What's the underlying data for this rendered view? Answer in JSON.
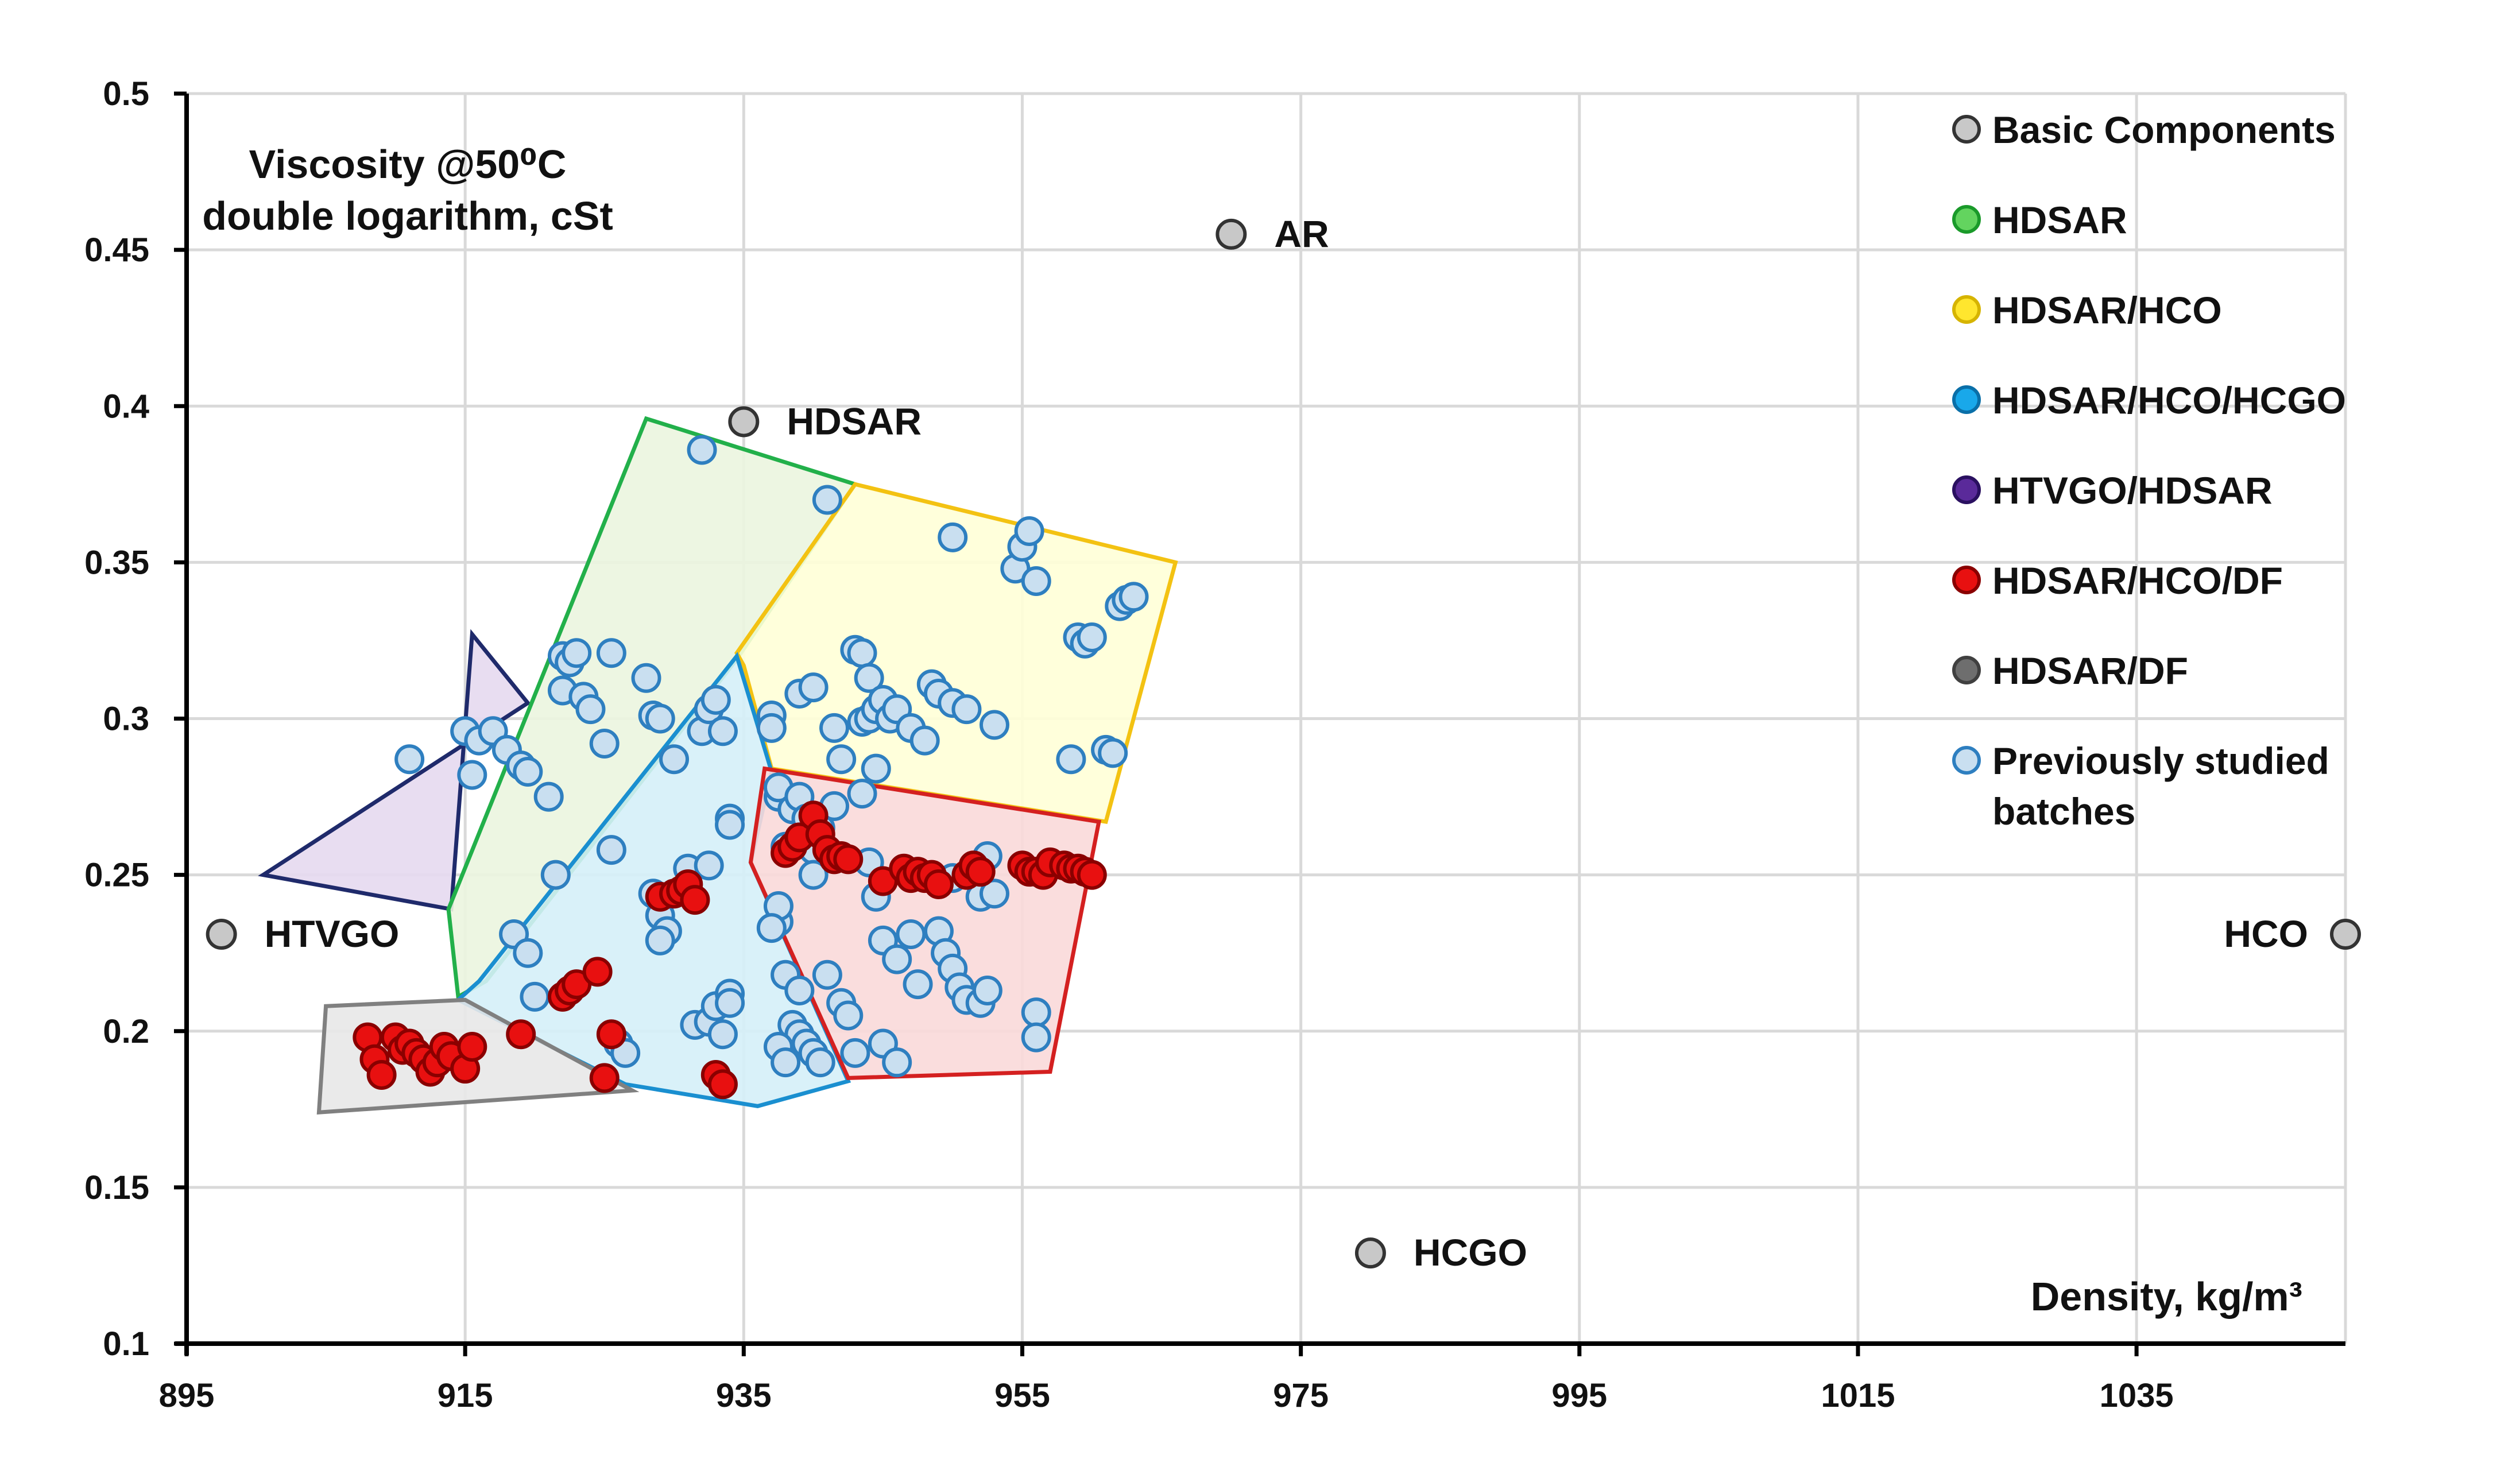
{
  "chart_data": {
    "type": "scatter",
    "title": "",
    "ylabel_lines": [
      "Viscosity @50⁰C",
      "double logarithm, cSt"
    ],
    "xlabel": "Density, kg/m³",
    "xlim": [
      895,
      1050
    ],
    "ylim": [
      0.1,
      0.5
    ],
    "x_ticks": [
      895,
      915,
      935,
      955,
      975,
      995,
      1015,
      1035
    ],
    "y_ticks": [
      0.1,
      0.15,
      0.2,
      0.25,
      0.3,
      0.35,
      0.4,
      0.45,
      0.5
    ],
    "x_tick_labels": [
      "895",
      "915",
      "935",
      "955",
      "975",
      "995",
      "1015",
      "1035"
    ],
    "y_tick_labels": [
      "0.1",
      "0.15",
      "0.2",
      "0.25",
      "0.3",
      "0.35",
      "0.4",
      "0.45",
      "0.5"
    ],
    "grid": true,
    "legend_position": "top-right",
    "legend": [
      {
        "label": "Basic Components",
        "color": "#c8c8c8",
        "edge": "#333333"
      },
      {
        "label": "HDSAR",
        "color": "#63d45f",
        "edge": "#1a9a2a"
      },
      {
        "label": "HDSAR/HCO",
        "color": "#ffe62e",
        "edge": "#d6b400"
      },
      {
        "label": "HDSAR/HCO/HCGO",
        "color": "#19a8ea",
        "edge": "#0a6fa8"
      },
      {
        "label": "HTVGO/HDSAR",
        "color": "#5a2a9a",
        "edge": "#2a1060"
      },
      {
        "label": "HDSAR/HCO/DF",
        "color": "#e81010",
        "edge": "#8a0000"
      },
      {
        "label": "HDSAR/DF",
        "color": "#6e6e6e",
        "edge": "#404040"
      },
      {
        "label": "Previously studied\nbatches",
        "color": "#c9dff0",
        "edge": "#2e7fc0"
      }
    ],
    "regions": [
      {
        "name": "HTVGO/HDSAR",
        "fill": "#e6d9ef",
        "stroke": "#1f2a6b",
        "points": [
          [
            900.5,
            0.25
          ],
          [
            914.0,
            0.239
          ],
          [
            915.5,
            0.327
          ],
          [
            919.5,
            0.305
          ]
        ]
      },
      {
        "name": "HDSAR",
        "fill": "#ebf5df",
        "stroke": "#22b04a",
        "points": [
          [
            913.8,
            0.239
          ],
          [
            928.0,
            0.396
          ],
          [
            943.0,
            0.375
          ],
          [
            934.5,
            0.319
          ],
          [
            916.5,
            0.216
          ],
          [
            914.5,
            0.211
          ]
        ]
      },
      {
        "name": "HDSAR/HCO",
        "fill": "#ffffd7",
        "stroke": "#f3c212",
        "points": [
          [
            934.5,
            0.321
          ],
          [
            943.0,
            0.375
          ],
          [
            966.0,
            0.35
          ],
          [
            961.0,
            0.267
          ],
          [
            937.0,
            0.284
          ],
          [
            935.0,
            0.317
          ]
        ]
      },
      {
        "name": "HDSAR/HCO/HCGO",
        "fill": "#d5eff8",
        "stroke": "#1a8fd0",
        "points": [
          [
            916.0,
            0.216
          ],
          [
            934.5,
            0.32
          ],
          [
            937.0,
            0.283
          ],
          [
            935.5,
            0.254
          ],
          [
            942.5,
            0.184
          ],
          [
            936.0,
            0.176
          ],
          [
            926.5,
            0.183
          ],
          [
            914.5,
            0.21
          ]
        ]
      },
      {
        "name": "HDSAR/HCO/DF",
        "fill": "#fad9d9",
        "stroke": "#d42020",
        "points": [
          [
            936.5,
            0.284
          ],
          [
            960.5,
            0.267
          ],
          [
            957.0,
            0.187
          ],
          [
            942.5,
            0.185
          ],
          [
            935.5,
            0.254
          ]
        ]
      },
      {
        "name": "HDSAR/DF",
        "fill": "#e8e8e8",
        "stroke": "#808080",
        "points": [
          [
            905.0,
            0.208
          ],
          [
            915.0,
            0.21
          ],
          [
            927.0,
            0.181
          ],
          [
            904.5,
            0.174
          ]
        ]
      }
    ],
    "series": [
      {
        "name": "Basic Components",
        "color": "#c8c8c8",
        "edge": "#333333",
        "points": [
          [
            935.0,
            0.395
          ],
          [
            970.0,
            0.455
          ],
          [
            980.0,
            0.129
          ],
          [
            897.5,
            0.231
          ],
          [
            1050.0,
            0.231
          ]
        ]
      },
      {
        "name": "Previously studied batches",
        "color": "#c9dff0",
        "edge": "#2e7fc0",
        "points": [
          [
            911,
            0.287
          ],
          [
            915,
            0.296
          ],
          [
            915.5,
            0.282
          ],
          [
            916,
            0.293
          ],
          [
            917,
            0.296
          ],
          [
            918,
            0.29
          ],
          [
            919,
            0.285
          ],
          [
            919.5,
            0.283
          ],
          [
            921,
            0.275
          ],
          [
            922,
            0.32
          ],
          [
            922.5,
            0.318
          ],
          [
            923,
            0.321
          ],
          [
            922,
            0.309
          ],
          [
            923.5,
            0.307
          ],
          [
            924,
            0.303
          ],
          [
            925,
            0.292
          ],
          [
            925.5,
            0.321
          ],
          [
            928,
            0.313
          ],
          [
            928.5,
            0.301
          ],
          [
            929,
            0.3
          ],
          [
            921.5,
            0.25
          ],
          [
            918.5,
            0.231
          ],
          [
            919.5,
            0.225
          ],
          [
            920,
            0.211
          ],
          [
            925.5,
            0.258
          ],
          [
            928.5,
            0.244
          ],
          [
            929,
            0.237
          ],
          [
            929.5,
            0.232
          ],
          [
            929,
            0.229
          ],
          [
            930,
            0.287
          ],
          [
            931,
            0.252
          ],
          [
            932,
            0.296
          ],
          [
            932.5,
            0.303
          ],
          [
            933,
            0.306
          ],
          [
            933.5,
            0.296
          ],
          [
            934,
            0.268
          ],
          [
            934,
            0.266
          ],
          [
            932.5,
            0.253
          ],
          [
            926,
            0.196
          ],
          [
            926.5,
            0.193
          ],
          [
            931.5,
            0.202
          ],
          [
            932.5,
            0.203
          ],
          [
            933,
            0.208
          ],
          [
            934,
            0.212
          ],
          [
            934,
            0.209
          ],
          [
            933.5,
            0.199
          ],
          [
            937,
            0.301
          ],
          [
            937.5,
            0.275
          ],
          [
            938,
            0.259
          ],
          [
            939,
            0.308
          ],
          [
            940,
            0.31
          ],
          [
            941.5,
            0.297
          ],
          [
            942,
            0.287
          ],
          [
            943,
            0.322
          ],
          [
            943.5,
            0.321
          ],
          [
            944,
            0.313
          ],
          [
            943.5,
            0.299
          ],
          [
            944,
            0.3
          ],
          [
            944.5,
            0.303
          ],
          [
            945,
            0.306
          ],
          [
            945.5,
            0.3
          ],
          [
            944.5,
            0.284
          ],
          [
            946,
            0.303
          ],
          [
            947,
            0.297
          ],
          [
            948,
            0.293
          ],
          [
            948.5,
            0.311
          ],
          [
            949,
            0.308
          ],
          [
            950,
            0.305
          ],
          [
            951,
            0.303
          ],
          [
            953,
            0.298
          ],
          [
            950,
            0.358
          ],
          [
            954.5,
            0.348
          ],
          [
            955,
            0.355
          ],
          [
            955.5,
            0.36
          ],
          [
            956,
            0.344
          ],
          [
            958.5,
            0.287
          ],
          [
            959,
            0.326
          ],
          [
            959.5,
            0.324
          ],
          [
            960,
            0.326
          ],
          [
            961,
            0.29
          ],
          [
            961.5,
            0.289
          ],
          [
            962,
            0.336
          ],
          [
            962.5,
            0.338
          ],
          [
            963,
            0.339
          ],
          [
            941,
            0.37
          ],
          [
            932,
            0.386
          ],
          [
            937,
            0.297
          ],
          [
            937.5,
            0.278
          ],
          [
            938.5,
            0.271
          ],
          [
            939,
            0.275
          ],
          [
            939.5,
            0.268
          ],
          [
            940,
            0.263
          ],
          [
            940,
            0.258
          ],
          [
            937.5,
            0.235
          ],
          [
            937.5,
            0.24
          ],
          [
            937,
            0.233
          ],
          [
            938,
            0.218
          ],
          [
            939,
            0.213
          ],
          [
            938.5,
            0.202
          ],
          [
            939,
            0.199
          ],
          [
            939.5,
            0.196
          ],
          [
            940,
            0.193
          ],
          [
            940.5,
            0.19
          ],
          [
            937.5,
            0.195
          ],
          [
            938,
            0.19
          ],
          [
            941,
            0.218
          ],
          [
            942,
            0.209
          ],
          [
            942.5,
            0.205
          ],
          [
            943,
            0.193
          ],
          [
            944.5,
            0.243
          ],
          [
            945,
            0.229
          ],
          [
            946,
            0.223
          ],
          [
            947,
            0.231
          ],
          [
            947.5,
            0.215
          ],
          [
            945,
            0.196
          ],
          [
            946,
            0.19
          ],
          [
            949,
            0.232
          ],
          [
            949.5,
            0.225
          ],
          [
            950,
            0.22
          ],
          [
            950.5,
            0.214
          ],
          [
            951,
            0.21
          ],
          [
            952,
            0.209
          ],
          [
            952.5,
            0.213
          ],
          [
            952,
            0.243
          ],
          [
            953,
            0.244
          ],
          [
            952.5,
            0.256
          ],
          [
            950,
            0.249
          ],
          [
            956,
            0.206
          ],
          [
            956,
            0.198
          ],
          [
            940,
            0.25
          ],
          [
            940.5,
            0.265
          ],
          [
            941.5,
            0.272
          ],
          [
            943.5,
            0.276
          ],
          [
            944,
            0.254
          ]
        ]
      },
      {
        "name": "HDSAR/HCO/DF",
        "color": "#e81010",
        "edge": "#8a0000",
        "points": [
          [
            908,
            0.198
          ],
          [
            908.5,
            0.191
          ],
          [
            909,
            0.186
          ],
          [
            910,
            0.198
          ],
          [
            910.5,
            0.194
          ],
          [
            911,
            0.196
          ],
          [
            911.5,
            0.193
          ],
          [
            912,
            0.191
          ],
          [
            912.5,
            0.187
          ],
          [
            913,
            0.19
          ],
          [
            913.5,
            0.195
          ],
          [
            914,
            0.192
          ],
          [
            915,
            0.188
          ],
          [
            915.5,
            0.195
          ],
          [
            919,
            0.199
          ],
          [
            922,
            0.211
          ],
          [
            922.5,
            0.213
          ],
          [
            923,
            0.215
          ],
          [
            924.5,
            0.219
          ],
          [
            925,
            0.185
          ],
          [
            925.5,
            0.199
          ],
          [
            929,
            0.243
          ],
          [
            930,
            0.244
          ],
          [
            930.5,
            0.245
          ],
          [
            931,
            0.247
          ],
          [
            931.5,
            0.242
          ],
          [
            933,
            0.186
          ],
          [
            933.5,
            0.183
          ],
          [
            938,
            0.257
          ],
          [
            938.5,
            0.259
          ],
          [
            939,
            0.262
          ],
          [
            940,
            0.269
          ],
          [
            940.5,
            0.263
          ],
          [
            941,
            0.258
          ],
          [
            941.5,
            0.255
          ],
          [
            942,
            0.256
          ],
          [
            942.5,
            0.255
          ],
          [
            945,
            0.248
          ],
          [
            946.5,
            0.252
          ],
          [
            947,
            0.249
          ],
          [
            947.5,
            0.251
          ],
          [
            948,
            0.249
          ],
          [
            948.5,
            0.25
          ],
          [
            949,
            0.247
          ],
          [
            951,
            0.25
          ],
          [
            951.5,
            0.253
          ],
          [
            952,
            0.251
          ],
          [
            955,
            0.253
          ],
          [
            955.5,
            0.251
          ],
          [
            956,
            0.251
          ],
          [
            956.5,
            0.25
          ],
          [
            957,
            0.254
          ],
          [
            958,
            0.253
          ],
          [
            958.5,
            0.252
          ],
          [
            959,
            0.252
          ],
          [
            959.5,
            0.251
          ],
          [
            960,
            0.25
          ]
        ]
      }
    ],
    "annotations": [
      {
        "text": "AR",
        "x": 970.0,
        "y": 0.455,
        "anchor": "start"
      },
      {
        "text": "HDSAR",
        "x": 935.0,
        "y": 0.395,
        "anchor": "start"
      },
      {
        "text": "HTVGO",
        "x": 897.5,
        "y": 0.231,
        "anchor": "start"
      },
      {
        "text": "HCGO",
        "x": 980.0,
        "y": 0.129,
        "anchor": "start"
      },
      {
        "text": "HCO",
        "x": 1050.0,
        "y": 0.231,
        "anchor": "end"
      }
    ]
  }
}
